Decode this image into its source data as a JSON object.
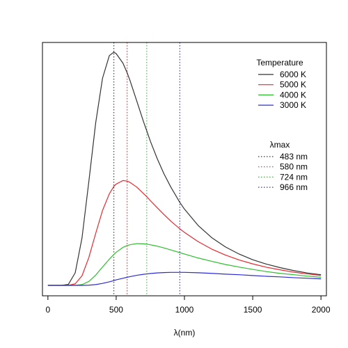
{
  "chart_data": {
    "type": "line",
    "title": "",
    "xlabel": "λ(nm)",
    "ylabel": "",
    "xlim": [
      -40,
      2040
    ],
    "x_ticks": [
      0,
      500,
      1000,
      1500,
      2000
    ],
    "y_axis_shown": false,
    "grid": false,
    "x": [
      0,
      100,
      150,
      200,
      250,
      300,
      350,
      400,
      450,
      483,
      500,
      550,
      580,
      600,
      650,
      700,
      724,
      750,
      800,
      850,
      900,
      966,
      1000,
      1100,
      1200,
      1300,
      1400,
      1500,
      1600,
      1700,
      1800,
      1900,
      2000
    ],
    "series": [
      {
        "name": "6000 K",
        "color": "#333333",
        "values": [
          0,
          0.0,
          0.5,
          6.4,
          24.2,
          52.8,
          82.5,
          105.1,
          116.6,
          118.3,
          117.6,
          112.7,
          107.9,
          104.2,
          93.7,
          83.1,
          78.4,
          73.2,
          64.4,
          56.6,
          49.9,
          42.1,
          38.7,
          30.4,
          24.2,
          19.5,
          15.9,
          13.0,
          10.8,
          9.0,
          7.5,
          6.3,
          5.4
        ]
      },
      {
        "name": "5000 K",
        "color": "#e8282d",
        "values": [
          0,
          0.0,
          0.0,
          0.8,
          4.9,
          14.2,
          26.4,
          38.0,
          46.5,
          50.2,
          51.4,
          53.2,
          52.9,
          52.3,
          49.9,
          46.6,
          45.0,
          43.0,
          39.4,
          35.9,
          32.6,
          28.7,
          26.9,
          22.2,
          18.4,
          15.4,
          12.9,
          10.9,
          9.2,
          7.9,
          6.7,
          5.8,
          5.0
        ]
      },
      {
        "name": "4000 K",
        "color": "#2bbf2b",
        "values": [
          0,
          0.0,
          0.0,
          0.0,
          0.4,
          2.0,
          5.2,
          9.3,
          13.3,
          15.7,
          16.8,
          19.3,
          20.2,
          20.6,
          21.2,
          21.1,
          20.9,
          20.6,
          19.9,
          19.0,
          18.0,
          16.6,
          15.9,
          13.9,
          12.2,
          10.6,
          9.3,
          8.1,
          7.0,
          6.1,
          5.4,
          4.7,
          4.1
        ]
      },
      {
        "name": "3000 K",
        "color": "#2b2bd9",
        "values": [
          0,
          0.0,
          0.0,
          0.0,
          0.0,
          0.1,
          0.4,
          1.0,
          1.8,
          2.4,
          2.8,
          3.6,
          4.1,
          4.4,
          5.1,
          5.6,
          5.8,
          6.0,
          6.3,
          6.5,
          6.6,
          6.6,
          6.6,
          6.4,
          6.1,
          5.7,
          5.4,
          5.0,
          4.6,
          4.3,
          3.9,
          3.6,
          3.3
        ]
      }
    ],
    "vlines": [
      {
        "name": "483 nm",
        "x": 483,
        "color": "#333333"
      },
      {
        "name": "580 nm",
        "x": 580,
        "color": "#e8282d"
      },
      {
        "name": "724 nm",
        "x": 724,
        "color": "#2bbf2b"
      },
      {
        "name": "966 nm",
        "x": 966,
        "color": "#2b2bd9"
      }
    ],
    "legends": [
      {
        "title": "Temperature",
        "style": "solid",
        "placement": "top-right",
        "entries": [
          "6000 K",
          "5000 K",
          "4000 K",
          "3000 K"
        ]
      },
      {
        "title": "λmax",
        "style": "dotted",
        "placement": "right",
        "entries": [
          "483 nm",
          "580 nm",
          "724 nm",
          "966 nm"
        ]
      }
    ]
  }
}
